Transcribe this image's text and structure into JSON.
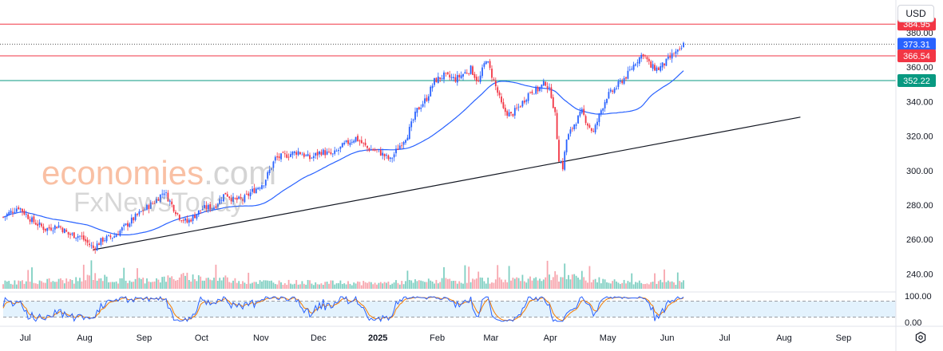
{
  "currency": "USD",
  "watermark": {
    "line1": "economies",
    "line1_suffix": ".com",
    "line2": "FxNewsToday"
  },
  "chart_data": {
    "type": "candlestick",
    "title": "",
    "price_axis": {
      "min": 230,
      "max": 392,
      "ticks": [
        240,
        260,
        280,
        300,
        320,
        340,
        360,
        380
      ]
    },
    "oscillator_axis": {
      "min": 0,
      "max": 100,
      "ticks_labels": [
        "100.00",
        "0.00"
      ],
      "ticks": [
        100,
        0
      ],
      "bands": [
        20,
        80
      ]
    },
    "time_axis": [
      {
        "label": "Jul",
        "t": 11.5
      },
      {
        "label": "Aug",
        "t": 42.5
      },
      {
        "label": "Sep",
        "t": 73.5
      },
      {
        "label": "Oct",
        "t": 103.5
      },
      {
        "label": "Nov",
        "t": 134.5
      },
      {
        "label": "Dec",
        "t": 164.5
      },
      {
        "label": "2025",
        "t": 195.5,
        "bold": true
      },
      {
        "label": "Feb",
        "t": 226.5
      },
      {
        "label": "Mar",
        "t": 254.5
      },
      {
        "label": "Apr",
        "t": 285.5
      },
      {
        "label": "May",
        "t": 315.5
      },
      {
        "label": "Jun",
        "t": 346.5
      },
      {
        "label": "Jul",
        "t": 376.5
      },
      {
        "label": "Aug",
        "t": 407.5
      },
      {
        "label": "Sep",
        "t": 438.5
      }
    ],
    "price_keypoints": [
      [
        0,
        273
      ],
      [
        8,
        279
      ],
      [
        15,
        271
      ],
      [
        22,
        266
      ],
      [
        29,
        268
      ],
      [
        34,
        263
      ],
      [
        40,
        262
      ],
      [
        47,
        255
      ],
      [
        52,
        260
      ],
      [
        58,
        262
      ],
      [
        65,
        269
      ],
      [
        72,
        276
      ],
      [
        79,
        282
      ],
      [
        84,
        288
      ],
      [
        88,
        280
      ],
      [
        92,
        273
      ],
      [
        96,
        270
      ],
      [
        100,
        274
      ],
      [
        104,
        278
      ],
      [
        110,
        279
      ],
      [
        116,
        287
      ],
      [
        120,
        283
      ],
      [
        125,
        283
      ],
      [
        130,
        288
      ],
      [
        136,
        293
      ],
      [
        142,
        307
      ],
      [
        148,
        309
      ],
      [
        154,
        311
      ],
      [
        160,
        307
      ],
      [
        166,
        311
      ],
      [
        172,
        309
      ],
      [
        178,
        315
      ],
      [
        184,
        319
      ],
      [
        190,
        313
      ],
      [
        196,
        311
      ],
      [
        202,
        306
      ],
      [
        206,
        313
      ],
      [
        211,
        321
      ],
      [
        216,
        335
      ],
      [
        221,
        342
      ],
      [
        225,
        352
      ],
      [
        230,
        355
      ],
      [
        236,
        353
      ],
      [
        240,
        356
      ],
      [
        244,
        359
      ],
      [
        248,
        351
      ],
      [
        252,
        365
      ],
      [
        256,
        352
      ],
      [
        261,
        335
      ],
      [
        265,
        332
      ],
      [
        270,
        338
      ],
      [
        275,
        346
      ],
      [
        279,
        347
      ],
      [
        283,
        351
      ],
      [
        286,
        344
      ],
      [
        288,
        332
      ],
      [
        290,
        307
      ],
      [
        292,
        302
      ],
      [
        294,
        318
      ],
      [
        298,
        327
      ],
      [
        302,
        334
      ],
      [
        305,
        327
      ],
      [
        308,
        322
      ],
      [
        312,
        335
      ],
      [
        315,
        343
      ],
      [
        318,
        346
      ],
      [
        322,
        351
      ],
      [
        326,
        356
      ],
      [
        330,
        363
      ],
      [
        334,
        368
      ],
      [
        338,
        360
      ],
      [
        342,
        359
      ],
      [
        346,
        363
      ],
      [
        350,
        368
      ],
      [
        353,
        369
      ],
      [
        355,
        373
      ]
    ],
    "volume_keypoints": [
      [
        0,
        45
      ],
      [
        20,
        55
      ],
      [
        40,
        60
      ],
      [
        47,
        90
      ],
      [
        60,
        55
      ],
      [
        85,
        70
      ],
      [
        95,
        85
      ],
      [
        130,
        50
      ],
      [
        160,
        45
      ],
      [
        195,
        40
      ],
      [
        225,
        55
      ],
      [
        255,
        60
      ],
      [
        290,
        85
      ],
      [
        320,
        50
      ],
      [
        355,
        45
      ]
    ],
    "volume_axis": {
      "max": 400
    },
    "trendline": {
      "start": [
        47,
        254
      ],
      "end": [
        416,
        331
      ]
    },
    "horizontal_levels": [
      {
        "value": 384.95,
        "label": "384.95",
        "color": "#f23645",
        "style": "solid"
      },
      {
        "value": 373.31,
        "label": "373.31",
        "color": "#2962ff",
        "style": "dotted"
      },
      {
        "value": 366.54,
        "label": "366.54",
        "color": "#f23645",
        "style": "solid"
      },
      {
        "value": 352.22,
        "label": "352.22",
        "color": "#089981",
        "style": "solid"
      }
    ],
    "colors": {
      "up": "#2962ff",
      "down": "#f23645",
      "ma": "#2962ff",
      "trendline": "#131722",
      "volume_up": "#7fcfc2",
      "volume_down": "#f7a6ae",
      "osc_k": "#2962ff",
      "osc_d": "#f57c00",
      "osc_band": "#e3f2fd"
    },
    "series": [
      {
        "kind": "candles"
      },
      {
        "kind": "moving_average",
        "period": 50
      },
      {
        "kind": "volume"
      },
      {
        "kind": "stochastic_oscillator"
      }
    ]
  }
}
